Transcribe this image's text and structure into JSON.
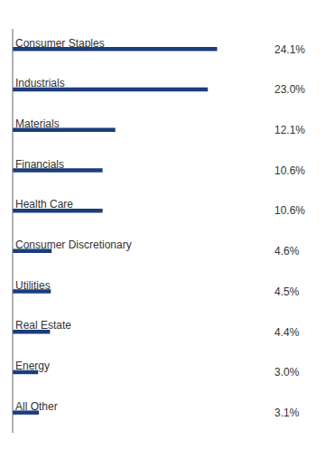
{
  "chart_data": {
    "type": "bar",
    "orientation": "horizontal",
    "categories": [
      "Consumer Staples",
      "Industrials",
      "Materials",
      "Financials",
      "Health Care",
      "Consumer Discretionary",
      "Utilities",
      "Real Estate",
      "Energy",
      "All Other"
    ],
    "values": [
      24.1,
      23.0,
      12.1,
      10.6,
      10.6,
      4.6,
      4.5,
      4.4,
      3.0,
      3.1
    ],
    "value_labels": [
      "24.1%",
      "23.0%",
      "12.1%",
      "10.6%",
      "10.6%",
      "4.6%",
      "4.5%",
      "4.4%",
      "3.0%",
      "3.1%"
    ],
    "color": "#1a3d7c",
    "xlim": [
      0,
      30
    ],
    "data_labels": true
  }
}
